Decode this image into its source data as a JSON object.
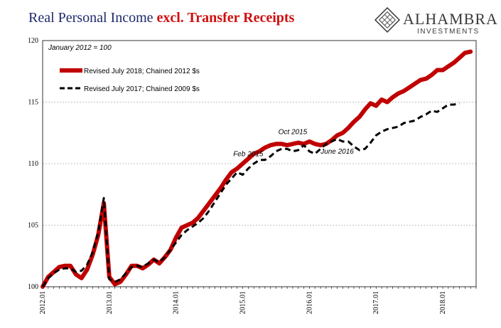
{
  "chart_data": {
    "type": "line",
    "title_part1": "Real Personal Income ",
    "title_part2": "excl. Transfer Receipts",
    "note": "January 2012 = 100",
    "ylim": [
      100,
      120
    ],
    "yticks": [
      100,
      105,
      110,
      115,
      120
    ],
    "xlim": [
      2012.0,
      2018.5
    ],
    "xticks": [
      {
        "x": 2012.0,
        "label": "2012.01"
      },
      {
        "x": 2013.0,
        "label": "2013.01"
      },
      {
        "x": 2014.0,
        "label": "2014.01"
      },
      {
        "x": 2015.0,
        "label": "2015.01"
      },
      {
        "x": 2016.0,
        "label": "2016.01"
      },
      {
        "x": 2017.0,
        "label": "2017.01"
      },
      {
        "x": 2018.0,
        "label": "2018.01"
      }
    ],
    "grid": "horizontal",
    "legend_position": "top-left",
    "series": [
      {
        "name": "Revised July 2018; Chained 2012 $s",
        "color": "#c00000",
        "style": "solid",
        "x": [
          2012.0,
          2012.083,
          2012.167,
          2012.25,
          2012.333,
          2012.417,
          2012.5,
          2012.583,
          2012.667,
          2012.75,
          2012.833,
          2012.917,
          2013.0,
          2013.083,
          2013.167,
          2013.25,
          2013.333,
          2013.417,
          2013.5,
          2013.583,
          2013.667,
          2013.75,
          2013.833,
          2013.917,
          2014.0,
          2014.083,
          2014.167,
          2014.25,
          2014.333,
          2014.417,
          2014.5,
          2014.583,
          2014.667,
          2014.75,
          2014.833,
          2014.917,
          2015.0,
          2015.083,
          2015.167,
          2015.25,
          2015.333,
          2015.417,
          2015.5,
          2015.583,
          2015.667,
          2015.75,
          2015.833,
          2015.917,
          2016.0,
          2016.083,
          2016.167,
          2016.25,
          2016.333,
          2016.417,
          2016.5,
          2016.583,
          2016.667,
          2016.75,
          2016.833,
          2016.917,
          2017.0,
          2017.083,
          2017.167,
          2017.25,
          2017.333,
          2017.417,
          2017.5,
          2017.583,
          2017.667,
          2017.75,
          2017.833,
          2017.917,
          2018.0,
          2018.083,
          2018.167,
          2018.25,
          2018.333,
          2018.417
        ],
        "values": [
          100.0,
          100.8,
          101.2,
          101.6,
          101.7,
          101.7,
          101.0,
          100.7,
          101.4,
          102.6,
          104.2,
          106.8,
          100.8,
          100.2,
          100.4,
          101.0,
          101.7,
          101.7,
          101.5,
          101.8,
          102.2,
          101.9,
          102.4,
          103.0,
          104.0,
          104.8,
          105.0,
          105.2,
          105.6,
          106.2,
          106.8,
          107.4,
          108.0,
          108.7,
          109.3,
          109.6,
          110.0,
          110.4,
          110.8,
          111.0,
          111.3,
          111.5,
          111.6,
          111.6,
          111.5,
          111.6,
          111.7,
          111.6,
          111.8,
          111.6,
          111.5,
          111.6,
          111.9,
          112.3,
          112.5,
          112.9,
          113.4,
          113.8,
          114.4,
          114.9,
          114.7,
          115.2,
          115.0,
          115.4,
          115.7,
          115.9,
          116.2,
          116.5,
          116.8,
          116.9,
          117.2,
          117.6,
          117.6,
          117.9,
          118.2,
          118.6,
          119.0,
          119.1
        ]
      },
      {
        "name": "Revised July 2017; Chained 2009 $s",
        "color": "#000000",
        "style": "dashed",
        "x": [
          2012.0,
          2012.083,
          2012.167,
          2012.25,
          2012.333,
          2012.417,
          2012.5,
          2012.583,
          2012.667,
          2012.75,
          2012.833,
          2012.917,
          2013.0,
          2013.083,
          2013.167,
          2013.25,
          2013.333,
          2013.417,
          2013.5,
          2013.583,
          2013.667,
          2013.75,
          2013.833,
          2013.917,
          2014.0,
          2014.083,
          2014.167,
          2014.25,
          2014.333,
          2014.417,
          2014.5,
          2014.583,
          2014.667,
          2014.75,
          2014.833,
          2014.917,
          2015.0,
          2015.083,
          2015.167,
          2015.25,
          2015.333,
          2015.417,
          2015.5,
          2015.583,
          2015.667,
          2015.75,
          2015.833,
          2015.917,
          2016.0,
          2016.083,
          2016.167,
          2016.25,
          2016.333,
          2016.417,
          2016.5,
          2016.583,
          2016.667,
          2016.75,
          2016.833,
          2016.917,
          2017.0,
          2017.083,
          2017.167,
          2017.25,
          2017.333,
          2017.417,
          2017.5,
          2017.583,
          2017.667,
          2017.75,
          2017.833,
          2017.917,
          2018.0,
          2018.083,
          2018.167,
          2018.25
        ],
        "values": [
          100.0,
          100.7,
          101.1,
          101.4,
          101.5,
          101.5,
          101.2,
          101.3,
          101.8,
          102.8,
          104.4,
          107.2,
          100.6,
          100.4,
          100.6,
          101.1,
          101.6,
          101.7,
          101.6,
          101.9,
          102.2,
          102.0,
          102.4,
          103.0,
          103.6,
          104.2,
          104.6,
          104.9,
          105.2,
          105.6,
          106.2,
          106.9,
          107.6,
          108.3,
          108.8,
          109.3,
          109.1,
          109.6,
          110.0,
          110.3,
          110.3,
          110.6,
          111.0,
          111.2,
          111.2,
          111.0,
          111.1,
          111.5,
          111.0,
          110.8,
          111.2,
          111.6,
          111.8,
          112.0,
          111.8,
          111.8,
          111.4,
          111.1,
          111.2,
          111.7,
          112.3,
          112.6,
          112.8,
          112.9,
          113.0,
          113.3,
          113.4,
          113.5,
          113.8,
          114.0,
          114.3,
          114.2,
          114.5,
          114.8,
          114.8,
          114.9
        ]
      }
    ],
    "annotations": [
      {
        "text": "Feb 2015",
        "x": 2015.083,
        "y": 110.6
      },
      {
        "text": "Oct 2015",
        "x": 2015.75,
        "y": 112.4
      },
      {
        "text": "June 2016",
        "x": 2016.417,
        "y": 110.8
      }
    ]
  },
  "logo": {
    "name": "ALHAMBRA",
    "sub": "INVESTMENTS"
  }
}
